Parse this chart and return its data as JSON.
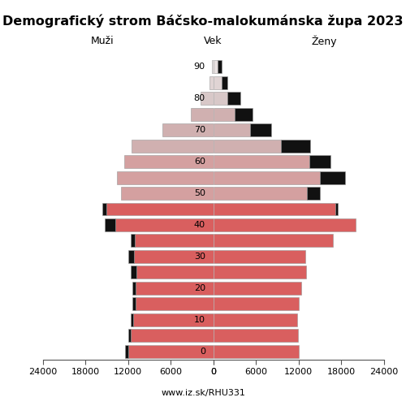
{
  "title": "Demografický strom Báčsko-malokumánska župa 2023",
  "label_left": "Muži",
  "label_right": "Ženy",
  "label_center": "Vek",
  "footer": "www.iz.sk/RHU331",
  "n_bars": 19,
  "age_tick_positions": [
    0,
    2,
    4,
    6,
    8,
    10,
    12,
    14,
    16,
    18
  ],
  "age_tick_labels": [
    "0",
    "10",
    "20",
    "30",
    "40",
    "50",
    "60",
    "70",
    "80",
    "90"
  ],
  "males_main": [
    12000,
    11600,
    11300,
    10900,
    10900,
    10800,
    11200,
    11000,
    13800,
    15000,
    13000,
    13500,
    12500,
    11500,
    7200,
    3200,
    1800,
    500,
    200
  ],
  "males_black": [
    400,
    300,
    300,
    500,
    500,
    800,
    800,
    600,
    1500,
    600,
    0,
    0,
    0,
    0,
    0,
    0,
    0,
    0,
    0
  ],
  "females_main": [
    12000,
    11900,
    11800,
    12000,
    12400,
    13100,
    13000,
    16800,
    20000,
    17200,
    13200,
    15000,
    13500,
    9500,
    5200,
    3000,
    2000,
    1200,
    600
  ],
  "females_black": [
    0,
    0,
    0,
    0,
    0,
    0,
    0,
    0,
    0,
    300,
    1800,
    3600,
    3000,
    4200,
    3000,
    2500,
    1800,
    800,
    600
  ],
  "colors_by_bar": [
    "#d95f5f",
    "#d95f5f",
    "#d95f5f",
    "#d95f5f",
    "#d95f5f",
    "#d95f5f",
    "#d95f5f",
    "#d95f5f",
    "#d95f5f",
    "#d95f5f",
    "#d4a0a0",
    "#d4a0a0",
    "#d4a0a0",
    "#d0b0b0",
    "#d0b0b0",
    "#d0b0b0",
    "#d8c8c8",
    "#e0d4d4",
    "#e8e0e0"
  ],
  "color_black": "#111111",
  "edge_color": "#999999",
  "xlim": 24000,
  "xticks": [
    0,
    6000,
    12000,
    18000,
    24000
  ],
  "bar_height": 0.82,
  "title_fontsize": 11.5,
  "label_fontsize": 9,
  "tick_fontsize": 8
}
